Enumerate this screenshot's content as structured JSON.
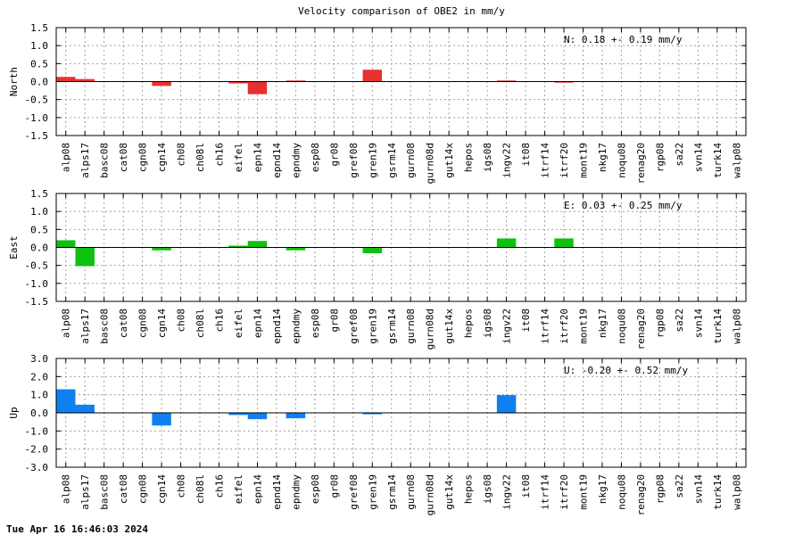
{
  "title": "Velocity comparison of OBE2 in mm/y",
  "timestamp": "Tue Apr 16 16:46:03 2024",
  "colors": {
    "north": "#e83030",
    "east": "#10c010",
    "up": "#1080f0",
    "grid": "#a0a0a0",
    "zero": "#000000"
  },
  "chart_data": [
    {
      "type": "bar",
      "ylabel": "North",
      "ylim": [
        -1.5,
        1.5
      ],
      "yticks": [
        "1.5",
        "1.0",
        "0.5",
        "0.0",
        "-0.5",
        "-1.0",
        "-1.5"
      ],
      "annotation": "N:   0.18 +-  0.19 mm/y",
      "grid": true,
      "categories": [
        "alp08",
        "alps17",
        "basc08",
        "cat08",
        "cgn08",
        "cgn14",
        "ch08",
        "ch08l",
        "ch16",
        "eifel",
        "epn14",
        "epnd14",
        "epndmy",
        "esp08",
        "gr08",
        "gref08",
        "gren19",
        "gsrm14",
        "gurn08",
        "gurn08d",
        "gut14x",
        "hepos",
        "igs08",
        "ingv22",
        "it08",
        "itrf14",
        "itrf20",
        "mont19",
        "nkg17",
        "noqu08",
        "renag20",
        "rgp08",
        "sa22",
        "svn14",
        "turk14",
        "walp08"
      ],
      "values": [
        0.13,
        0.07,
        0,
        0,
        0,
        -0.12,
        0,
        0,
        0,
        -0.05,
        -0.35,
        0,
        0.03,
        0,
        0,
        0,
        0.33,
        0,
        0,
        0,
        0,
        0,
        0,
        0.03,
        0,
        0,
        -0.03,
        0,
        0,
        0,
        0,
        0,
        0,
        0,
        0,
        0
      ]
    },
    {
      "type": "bar",
      "ylabel": "East",
      "ylim": [
        -1.5,
        1.5
      ],
      "yticks": [
        "1.5",
        "1.0",
        "0.5",
        "0.0",
        "-0.5",
        "-1.0",
        "-1.5"
      ],
      "annotation": "E:   0.03 +-  0.25 mm/y",
      "grid": true,
      "categories": [
        "alp08",
        "alps17",
        "basc08",
        "cat08",
        "cgn08",
        "cgn14",
        "ch08",
        "ch08l",
        "ch16",
        "eifel",
        "epn14",
        "epnd14",
        "epndmy",
        "esp08",
        "gr08",
        "gref08",
        "gren19",
        "gsrm14",
        "gurn08",
        "gurn08d",
        "gut14x",
        "hepos",
        "igs08",
        "ingv22",
        "it08",
        "itrf14",
        "itrf20",
        "mont19",
        "nkg17",
        "noqu08",
        "renag20",
        "rgp08",
        "sa22",
        "svn14",
        "turk14",
        "walp08"
      ],
      "values": [
        0.2,
        -0.52,
        0,
        0,
        0,
        -0.08,
        0,
        0,
        0,
        0.05,
        0.18,
        0,
        -0.08,
        0,
        0,
        0,
        -0.16,
        0,
        0,
        0,
        0,
        0,
        0,
        0.25,
        0,
        0,
        0.25,
        0,
        0,
        0,
        0,
        0,
        0,
        0,
        0,
        0
      ]
    },
    {
      "type": "bar",
      "ylabel": "Up",
      "ylim": [
        -3.0,
        3.0
      ],
      "yticks": [
        "3.0",
        "2.0",
        "1.0",
        "0.0",
        "-1.0",
        "-2.0",
        "-3.0"
      ],
      "annotation": "U:  -0.20 +-  0.52 mm/y",
      "grid": true,
      "categories": [
        "alp08",
        "alps17",
        "basc08",
        "cat08",
        "cgn08",
        "cgn14",
        "ch08",
        "ch08l",
        "ch16",
        "eifel",
        "epn14",
        "epnd14",
        "epndmy",
        "esp08",
        "gr08",
        "gref08",
        "gren19",
        "gsrm14",
        "gurn08",
        "gurn08d",
        "gut14x",
        "hepos",
        "igs08",
        "ingv22",
        "it08",
        "itrf14",
        "itrf20",
        "mont19",
        "nkg17",
        "noqu08",
        "renag20",
        "rgp08",
        "sa22",
        "svn14",
        "turk14",
        "walp08"
      ],
      "values": [
        1.3,
        0.45,
        0,
        0,
        0,
        -0.7,
        0,
        0,
        0,
        -0.12,
        -0.35,
        0,
        -0.3,
        0,
        0,
        0,
        -0.08,
        0,
        0,
        0,
        0,
        0,
        0,
        0.98,
        0,
        0,
        0,
        0,
        0,
        0,
        0,
        0,
        0,
        0,
        0,
        0
      ]
    }
  ]
}
